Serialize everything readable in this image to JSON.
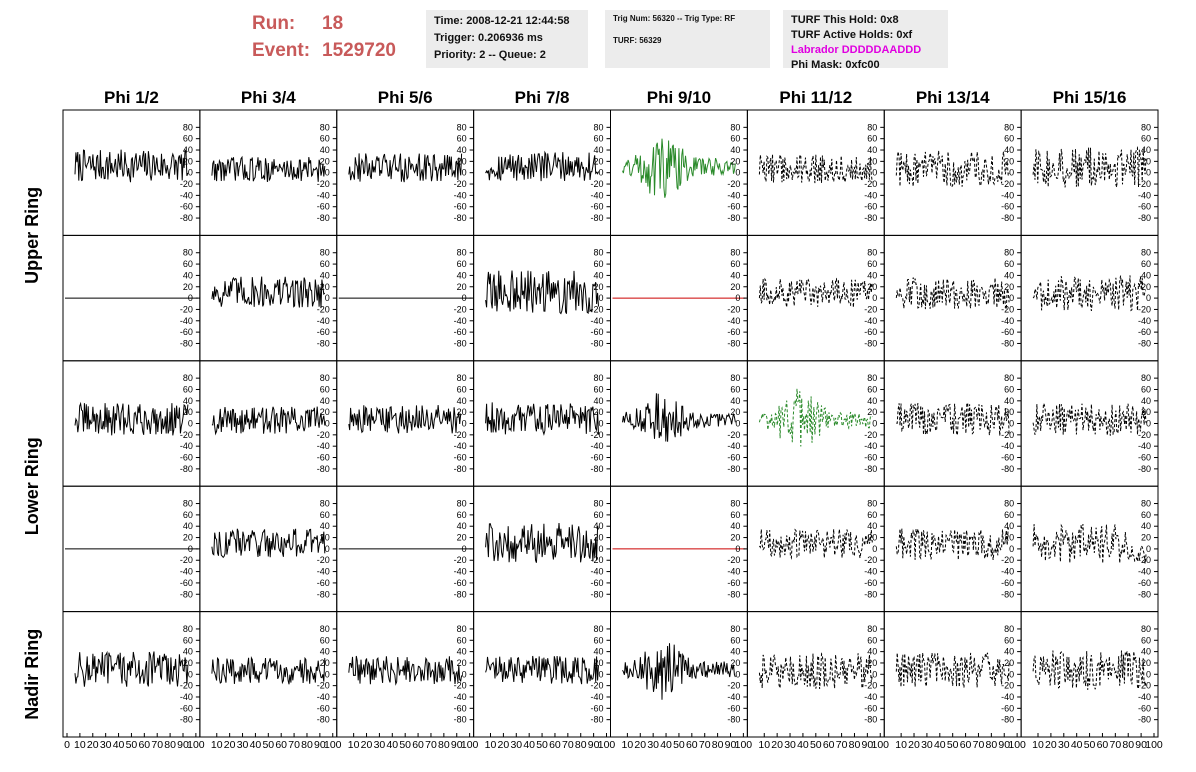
{
  "header": {
    "run_label": "Run:",
    "run_value": "18",
    "event_label": "Event:",
    "event_value": "1529720",
    "time": "Time: 2008-12-21 12:44:58",
    "trigger": "Trigger: 0.206936 ms",
    "priority": "Priority: 2 -- Queue: 2",
    "trig_num": "Trig Num: 56320 -- Trig Type: RF",
    "turf": "TURF: 56329",
    "turf_hold": "TURF This Hold: 0x8",
    "turf_active": "TURF Active Holds: 0xf",
    "labrador": "Labrador DDDDDAADDD",
    "phi_mask": "Phi Mask: 0xfc00",
    "labrador_color": "#e000e0",
    "run_color": "#c85a5a"
  },
  "chart_data": {
    "type": "line",
    "columns": [
      "Phi 1/2",
      "Phi 3/4",
      "Phi 5/6",
      "Phi 7/8",
      "Phi 9/10",
      "Phi 11/12",
      "Phi 13/14",
      "Phi 15/16"
    ],
    "ring_labels": [
      "Upper Ring",
      "Lower Ring",
      "Nadir Ring"
    ],
    "ylim": [
      -100,
      100
    ],
    "yticks": [
      -80,
      -60,
      -40,
      -20,
      0,
      20,
      40,
      60,
      80
    ],
    "xlim": [
      0,
      100
    ],
    "xticks": [
      0,
      10,
      20,
      30,
      40,
      50,
      60,
      70,
      80,
      90,
      100
    ],
    "colors": {
      "normal": "#000000",
      "triggered": "#2a8a2a",
      "flat": "#cc0000"
    },
    "styles": {
      "solid": "solid",
      "dashed": "dashed"
    },
    "grid": false,
    "panels": [
      [
        {
          "kind": "noise",
          "color": "normal",
          "style": "solid",
          "offset": 20,
          "amp": 18
        },
        {
          "kind": "noise",
          "color": "normal",
          "style": "solid",
          "offset": 10,
          "amp": 14
        },
        {
          "kind": "noise",
          "color": "normal",
          "style": "solid",
          "offset": 15,
          "amp": 16
        },
        {
          "kind": "noise",
          "color": "normal",
          "style": "solid",
          "offset": 18,
          "amp": 16
        },
        {
          "kind": "burst",
          "color": "triggered",
          "style": "solid",
          "offset": 18,
          "amp": 22
        },
        {
          "kind": "noise",
          "color": "normal",
          "style": "dashed",
          "offset": 12,
          "amp": 16
        },
        {
          "kind": "noise",
          "color": "normal",
          "style": "dashed",
          "offset": 12,
          "amp": 20
        },
        {
          "kind": "noise",
          "color": "normal",
          "style": "dashed",
          "offset": 15,
          "amp": 22
        }
      ],
      [
        {
          "kind": "flat",
          "color": "normal",
          "style": "solid",
          "offset": 0,
          "amp": 0
        },
        {
          "kind": "noise",
          "color": "normal",
          "style": "solid",
          "offset": 18,
          "amp": 18
        },
        {
          "kind": "flat",
          "color": "normal",
          "style": "solid",
          "offset": 0,
          "amp": 0
        },
        {
          "kind": "noise",
          "color": "normal",
          "style": "solid",
          "offset": 18,
          "amp": 24
        },
        {
          "kind": "flat",
          "color": "flat",
          "style": "solid",
          "offset": 0,
          "amp": 0
        },
        {
          "kind": "noise",
          "color": "normal",
          "style": "dashed",
          "offset": 14,
          "amp": 16
        },
        {
          "kind": "noise",
          "color": "normal",
          "style": "dashed",
          "offset": 15,
          "amp": 18
        },
        {
          "kind": "noise",
          "color": "normal",
          "style": "dashed",
          "offset": 15,
          "amp": 20
        }
      ],
      [
        {
          "kind": "noise",
          "color": "normal",
          "style": "solid",
          "offset": 12,
          "amp": 18
        },
        {
          "kind": "noise",
          "color": "normal",
          "style": "solid",
          "offset": 10,
          "amp": 15
        },
        {
          "kind": "noise",
          "color": "normal",
          "style": "solid",
          "offset": 12,
          "amp": 16
        },
        {
          "kind": "noise",
          "color": "normal",
          "style": "solid",
          "offset": 15,
          "amp": 18
        },
        {
          "kind": "burst",
          "color": "normal",
          "style": "solid",
          "offset": 10,
          "amp": 18
        },
        {
          "kind": "burst",
          "color": "triggered",
          "style": "dashed",
          "offset": 10,
          "amp": 20
        },
        {
          "kind": "noise",
          "color": "normal",
          "style": "dashed",
          "offset": 12,
          "amp": 18
        },
        {
          "kind": "noise",
          "color": "normal",
          "style": "dashed",
          "offset": 12,
          "amp": 18
        }
      ],
      [
        {
          "kind": "flat",
          "color": "normal",
          "style": "solid",
          "offset": 0,
          "amp": 0
        },
        {
          "kind": "noise",
          "color": "normal",
          "style": "solid",
          "offset": 18,
          "amp": 16
        },
        {
          "kind": "flat",
          "color": "normal",
          "style": "solid",
          "offset": 0,
          "amp": 0
        },
        {
          "kind": "noise",
          "color": "normal",
          "style": "solid",
          "offset": 18,
          "amp": 22
        },
        {
          "kind": "flat",
          "color": "flat",
          "style": "solid",
          "offset": 0,
          "amp": 0
        },
        {
          "kind": "noise",
          "color": "normal",
          "style": "dashed",
          "offset": 16,
          "amp": 16
        },
        {
          "kind": "noise",
          "color": "normal",
          "style": "dashed",
          "offset": 15,
          "amp": 18
        },
        {
          "kind": "noise",
          "color": "normal",
          "style": "dashed",
          "offset": 15,
          "amp": 22
        }
      ],
      [
        {
          "kind": "noise",
          "color": "normal",
          "style": "solid",
          "offset": 15,
          "amp": 20
        },
        {
          "kind": "noise",
          "color": "normal",
          "style": "solid",
          "offset": 10,
          "amp": 15
        },
        {
          "kind": "noise",
          "color": "normal",
          "style": "solid",
          "offset": 12,
          "amp": 16
        },
        {
          "kind": "noise",
          "color": "normal",
          "style": "solid",
          "offset": 12,
          "amp": 16
        },
        {
          "kind": "burst",
          "color": "normal",
          "style": "solid",
          "offset": 15,
          "amp": 20
        },
        {
          "kind": "noise",
          "color": "normal",
          "style": "dashed",
          "offset": 10,
          "amp": 20
        },
        {
          "kind": "noise",
          "color": "normal",
          "style": "dashed",
          "offset": 12,
          "amp": 20
        },
        {
          "kind": "noise",
          "color": "normal",
          "style": "dashed",
          "offset": 12,
          "amp": 22
        }
      ]
    ]
  }
}
